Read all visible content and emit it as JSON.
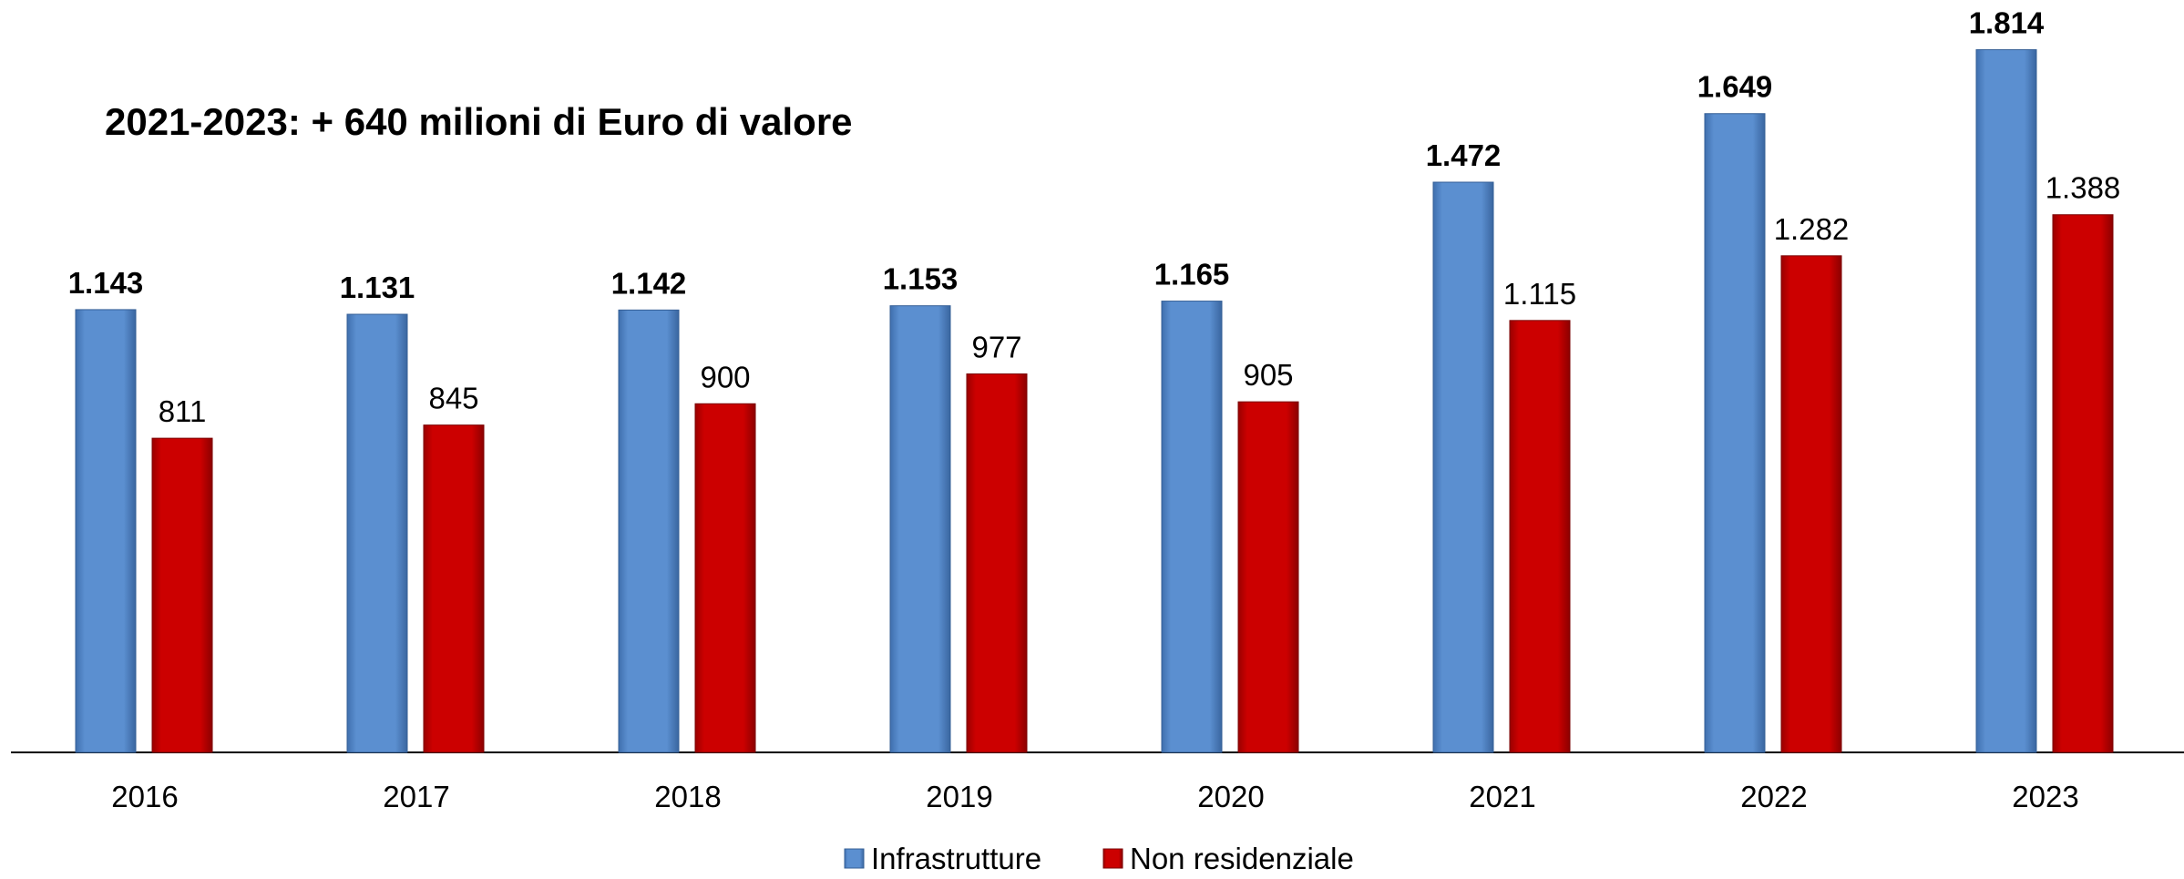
{
  "chart_data": {
    "type": "bar",
    "title": "2021-2023: + 640 milioni di Euro di valore",
    "categories": [
      "2016",
      "2017",
      "2018",
      "2019",
      "2020",
      "2021",
      "2022",
      "2023"
    ],
    "series": [
      {
        "name": "Infrastrutture",
        "color": "#5b8fd0",
        "values": [
          1143,
          1131,
          1142,
          1153,
          1165,
          1472,
          1649,
          1814
        ],
        "value_labels": [
          "1.143",
          "1.131",
          "1.142",
          "1.153",
          "1.165",
          "1.472",
          "1.649",
          "1.814"
        ]
      },
      {
        "name": "Non residenziale",
        "color": "#cc0000",
        "values": [
          811,
          845,
          900,
          977,
          905,
          1115,
          1282,
          1388
        ],
        "value_labels": [
          "811",
          "845",
          "900",
          "977",
          "905",
          "1.115",
          "1.282",
          "1.388"
        ]
      }
    ],
    "ylim": [
      0,
      1900
    ],
    "legend": "bottom"
  }
}
